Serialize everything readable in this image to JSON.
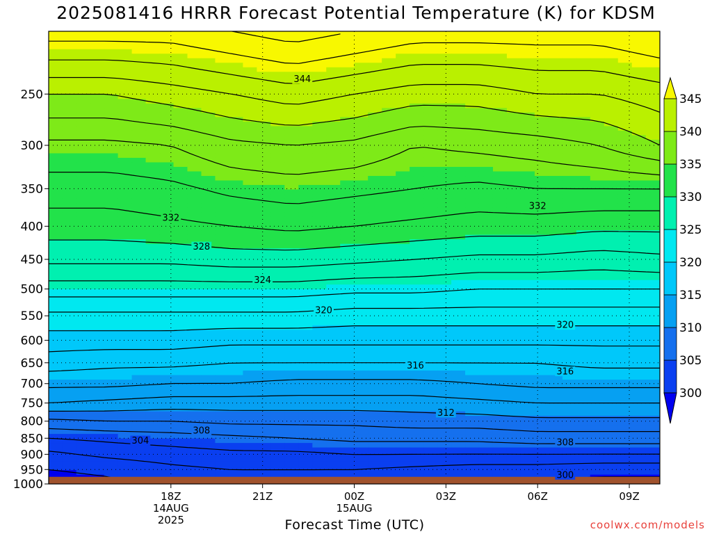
{
  "title": "2025081416 HRRR Forecast Potential Temperature (K) for KDSM",
  "xlabel": "Forecast Time (UTC)",
  "credit": "coolwx.com/models",
  "colors": {
    "ground": "#a0522d",
    "shading_bands": [
      {
        "lo": 295,
        "hi": 300,
        "color": "#0000f0"
      },
      {
        "lo": 300,
        "hi": 305,
        "color": "#0a3ff0"
      },
      {
        "lo": 305,
        "hi": 310,
        "color": "#1570ee"
      },
      {
        "lo": 310,
        "hi": 315,
        "color": "#06a0f2"
      },
      {
        "lo": 315,
        "hi": 320,
        "color": "#00c8fa"
      },
      {
        "lo": 320,
        "hi": 325,
        "color": "#00e8f0"
      },
      {
        "lo": 325,
        "hi": 330,
        "color": "#00f0b0"
      },
      {
        "lo": 330,
        "hi": 335,
        "color": "#22e24a"
      },
      {
        "lo": 335,
        "hi": 340,
        "color": "#7eea18"
      },
      {
        "lo": 340,
        "hi": 345,
        "color": "#baf000"
      },
      {
        "lo": 345,
        "hi": 350,
        "color": "#f8f800"
      }
    ]
  },
  "chart_data": {
    "type": "heatmap",
    "title": "2025081416 HRRR Forecast Potential Temperature (K) for KDSM",
    "xlabel": "Forecast Time (UTC)",
    "ylabel": "",
    "x_unit": "hours since 14Z 14AUG",
    "xlim": [
      0,
      20
    ],
    "x_ticks": [
      {
        "x": 4,
        "lines": [
          "18Z",
          "14AUG",
          "2025"
        ]
      },
      {
        "x": 7,
        "lines": [
          "21Z"
        ]
      },
      {
        "x": 10,
        "lines": [
          "00Z",
          "15AUG"
        ]
      },
      {
        "x": 13,
        "lines": [
          "03Z"
        ]
      },
      {
        "x": 16,
        "lines": [
          "06Z"
        ]
      },
      {
        "x": 19,
        "lines": [
          "09Z"
        ]
      }
    ],
    "ylim": [
      1000,
      200
    ],
    "y_scale": "log",
    "y_ticks": [
      250,
      300,
      350,
      400,
      450,
      500,
      550,
      600,
      650,
      700,
      750,
      800,
      850,
      900,
      950,
      1000
    ],
    "surface_pressure": 975,
    "grid": true,
    "colorbar": {
      "ticks": [
        300,
        305,
        310,
        315,
        320,
        325,
        330,
        335,
        340,
        345
      ],
      "extend": "both"
    },
    "contour_interval": 2,
    "contour_labels": [
      {
        "value": "344",
        "x": 8.3,
        "p": 237
      },
      {
        "value": "332",
        "x": 4.0,
        "p": 388
      },
      {
        "value": "332",
        "x": 16.0,
        "p": 372
      },
      {
        "value": "328",
        "x": 5.0,
        "p": 430
      },
      {
        "value": "324",
        "x": 7.0,
        "p": 484
      },
      {
        "value": "320",
        "x": 9.0,
        "p": 539
      },
      {
        "value": "320",
        "x": 16.9,
        "p": 568
      },
      {
        "value": "316",
        "x": 12.0,
        "p": 656
      },
      {
        "value": "316",
        "x": 16.9,
        "p": 670
      },
      {
        "value": "312",
        "x": 13.0,
        "p": 776
      },
      {
        "value": "308",
        "x": 5.0,
        "p": 827
      },
      {
        "value": "308",
        "x": 16.9,
        "p": 862
      },
      {
        "value": "304",
        "x": 3.0,
        "p": 857
      },
      {
        "value": "300",
        "x": 16.9,
        "p": 968
      }
    ],
    "theta_profiles": {
      "x": [
        0,
        2,
        4,
        6,
        8,
        10,
        12,
        14,
        16,
        18,
        20
      ],
      "p": [
        200,
        250,
        300,
        350,
        400,
        450,
        500,
        550,
        600,
        650,
        700,
        750,
        800,
        850,
        900,
        950,
        1000
      ],
      "theta": [
        [
          347,
          347,
          347,
          348,
          349,
          348,
          347,
          347,
          347,
          347,
          348
        ],
        [
          340,
          340,
          341,
          342,
          343,
          342,
          341,
          341,
          342,
          342,
          343
        ],
        [
          335.5,
          335.5,
          336,
          337.5,
          338,
          337.5,
          336,
          336.5,
          337,
          338,
          340
        ],
        [
          333,
          333,
          333.5,
          334.5,
          335,
          334.5,
          334,
          333.5,
          334,
          334,
          334
        ],
        [
          331,
          331,
          331.5,
          332,
          332.5,
          332,
          331.5,
          331,
          331,
          330.5,
          330.5
        ],
        [
          328.5,
          328.5,
          328.5,
          329,
          329,
          328.5,
          328,
          327.5,
          327.5,
          327,
          327.5
        ],
        [
          325,
          325,
          325,
          325,
          325,
          324.5,
          324.5,
          324,
          324,
          324,
          324
        ],
        [
          321.5,
          321.5,
          321.5,
          321.5,
          321.5,
          321,
          321,
          321,
          321,
          321,
          321
        ],
        [
          319,
          319,
          319,
          318.5,
          318.5,
          318.5,
          318.5,
          318.5,
          318.5,
          318.5,
          318.5
        ],
        [
          317,
          316.5,
          316.5,
          316,
          316,
          316,
          316,
          316,
          316,
          316.5,
          316.5
        ],
        [
          314.5,
          314.5,
          314,
          314,
          313.5,
          313.5,
          313.5,
          314,
          314.5,
          314.5,
          314.5
        ],
        [
          312,
          311.5,
          311,
          311,
          311,
          311,
          311,
          311.5,
          312,
          312,
          312
        ],
        [
          307.5,
          308,
          308,
          308.5,
          308.5,
          308.5,
          309,
          309,
          309.5,
          309.5,
          309.5
        ],
        [
          304,
          304.5,
          305,
          305.5,
          306,
          306.5,
          306.5,
          306.5,
          307,
          307,
          307
        ],
        [
          301.5,
          302.5,
          303,
          303.5,
          303.5,
          304,
          304,
          304,
          304,
          304,
          304
        ],
        [
          300,
          300.5,
          301.5,
          302,
          302,
          302,
          301.5,
          301,
          301,
          300.5,
          300.5
        ],
        [
          299,
          299.5,
          300.5,
          301,
          301,
          300.5,
          300,
          299.5,
          299.5,
          299.5,
          299.5
        ]
      ]
    }
  }
}
